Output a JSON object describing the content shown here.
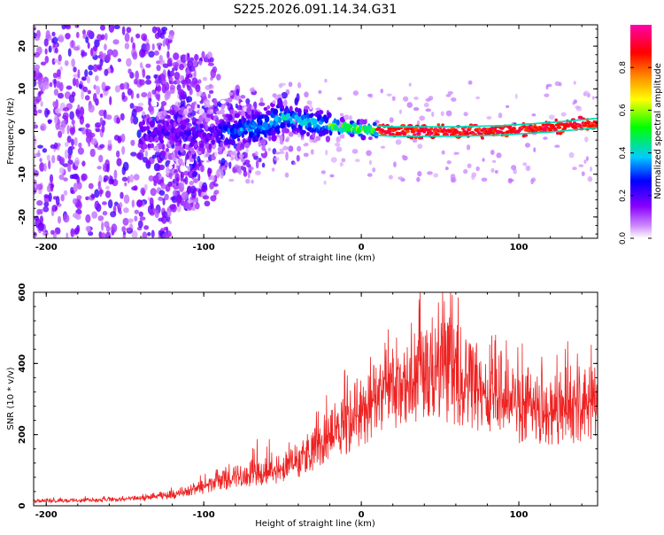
{
  "title": "S225.2026.091.14.34.G31",
  "chart_data": [
    {
      "type": "heatmap",
      "xlabel": "Height of straight line (km)",
      "ylabel": "Frequency (Hz)",
      "xlim": [
        -208,
        150
      ],
      "ylim": [
        -25,
        25
      ],
      "xticks": [
        -200,
        -100,
        0,
        100
      ],
      "yticks": [
        -20,
        -10,
        0,
        10,
        20
      ],
      "colorbar": {
        "label": "Normalized spectral amplitude",
        "range": [
          0,
          1
        ],
        "ticks": [
          0.0,
          0.2,
          0.4,
          0.6,
          0.8
        ],
        "tick_labels": [
          "0.0",
          "0.2",
          "0.4",
          "0.6",
          "0.8"
        ],
        "stops": [
          "#ffffff",
          "#8800ff",
          "#0000ff",
          "#00ccff",
          "#00ff00",
          "#ffff00",
          "#ff8800",
          "#ff0000",
          "#ff00aa"
        ]
      },
      "ridge": [
        {
          "x": -130,
          "f": 0.0
        },
        {
          "x": -100,
          "f": -0.5
        },
        {
          "x": -80,
          "f": 0.0
        },
        {
          "x": -60,
          "f": 1.5
        },
        {
          "x": -50,
          "f": 3.5
        },
        {
          "x": -40,
          "f": 2.5
        },
        {
          "x": -20,
          "f": 1.5
        },
        {
          "x": 0,
          "f": 0.5
        },
        {
          "x": 20,
          "f": 0.0
        },
        {
          "x": 60,
          "f": 0.0
        },
        {
          "x": 90,
          "f": 0.3
        },
        {
          "x": 120,
          "f": 1.0
        },
        {
          "x": 150,
          "f": 2.0
        }
      ]
    },
    {
      "type": "line",
      "xlabel": "Height of straight line (km)",
      "ylabel": "SNR (10 * v/v)",
      "xlim": [
        -208,
        150
      ],
      "ylim": [
        0,
        600
      ],
      "xticks": [
        -200,
        -100,
        0,
        100
      ],
      "yticks": [
        0,
        200,
        400,
        600
      ],
      "color": "#ee2222",
      "envelope": [
        {
          "x": -208,
          "y": 15
        },
        {
          "x": -150,
          "y": 20
        },
        {
          "x": -120,
          "y": 35
        },
        {
          "x": -100,
          "y": 60
        },
        {
          "x": -80,
          "y": 90
        },
        {
          "x": -60,
          "y": 100
        },
        {
          "x": -40,
          "y": 140
        },
        {
          "x": -20,
          "y": 220
        },
        {
          "x": 0,
          "y": 300
        },
        {
          "x": 20,
          "y": 390
        },
        {
          "x": 40,
          "y": 440
        },
        {
          "x": 60,
          "y": 410
        },
        {
          "x": 80,
          "y": 360
        },
        {
          "x": 100,
          "y": 320
        },
        {
          "x": 120,
          "y": 310
        },
        {
          "x": 150,
          "y": 320
        }
      ]
    }
  ]
}
